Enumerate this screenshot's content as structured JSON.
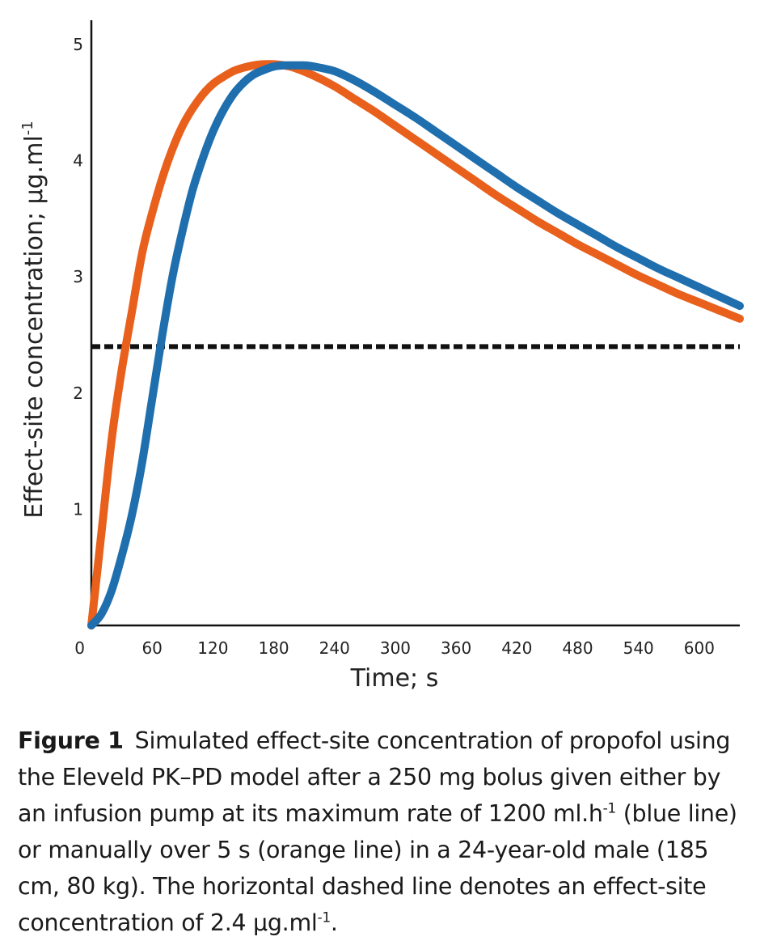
{
  "chart_data": {
    "type": "line",
    "xlabel": "Time; s",
    "ylabel_main": "Effect-site concentration; μg.ml",
    "ylabel_sup": "-1",
    "xlim": [
      0,
      640
    ],
    "ylim": [
      0,
      5
    ],
    "x_ticks": [
      60,
      120,
      180,
      240,
      300,
      360,
      420,
      480,
      540,
      600
    ],
    "y_ticks": [
      1,
      2,
      3,
      4,
      5
    ],
    "origin_label": "0",
    "threshold": {
      "name": "dashed",
      "value": 2.4,
      "color": "#111111"
    },
    "series": [
      {
        "name": "orange",
        "color": "#e8601c",
        "x": [
          0,
          10,
          20,
          30,
          40,
          50,
          60,
          70,
          80,
          90,
          100,
          110,
          120,
          130,
          140,
          150,
          160,
          170,
          180,
          190,
          200,
          220,
          240,
          260,
          280,
          300,
          320,
          340,
          360,
          380,
          400,
          420,
          440,
          460,
          480,
          500,
          520,
          540,
          560,
          580,
          600,
          620,
          640
        ],
        "values": [
          0,
          0.8,
          1.6,
          2.2,
          2.7,
          3.2,
          3.55,
          3.85,
          4.1,
          4.3,
          4.45,
          4.57,
          4.66,
          4.72,
          4.77,
          4.8,
          4.82,
          4.83,
          4.83,
          4.82,
          4.8,
          4.73,
          4.64,
          4.53,
          4.42,
          4.3,
          4.18,
          4.06,
          3.94,
          3.82,
          3.7,
          3.59,
          3.48,
          3.38,
          3.28,
          3.19,
          3.1,
          3.01,
          2.93,
          2.85,
          2.78,
          2.71,
          2.64
        ]
      },
      {
        "name": "blue",
        "color": "#1f6fae",
        "x": [
          0,
          10,
          20,
          30,
          40,
          50,
          60,
          70,
          80,
          90,
          100,
          110,
          120,
          130,
          140,
          150,
          160,
          170,
          180,
          190,
          200,
          210,
          220,
          240,
          260,
          280,
          300,
          320,
          340,
          360,
          380,
          400,
          420,
          440,
          460,
          480,
          500,
          520,
          540,
          560,
          580,
          600,
          620,
          640
        ],
        "values": [
          0,
          0.1,
          0.3,
          0.6,
          0.95,
          1.4,
          1.95,
          2.5,
          3.0,
          3.4,
          3.75,
          4.02,
          4.25,
          4.43,
          4.57,
          4.67,
          4.74,
          4.78,
          4.81,
          4.82,
          4.82,
          4.82,
          4.81,
          4.77,
          4.69,
          4.59,
          4.48,
          4.37,
          4.25,
          4.13,
          4.01,
          3.89,
          3.77,
          3.66,
          3.55,
          3.45,
          3.35,
          3.25,
          3.16,
          3.07,
          2.99,
          2.91,
          2.83,
          2.75
        ]
      }
    ]
  },
  "caption": {
    "label": "Figure 1",
    "part1": "Simulated effect-site concentration of propofol using the Eleveld PK–PD model after a 250 mg bolus given either by an infusion pump at its maximum rate of 1200 ml.h",
    "sup1": "-1",
    "part2": " (blue line) or manually over 5 s (orange line) in a 24-year-old male (185 cm, 80 kg). The horizontal dashed line denotes an effect-site concentration of 2.4 μg.ml",
    "sup2": "-1",
    "part3": "."
  }
}
